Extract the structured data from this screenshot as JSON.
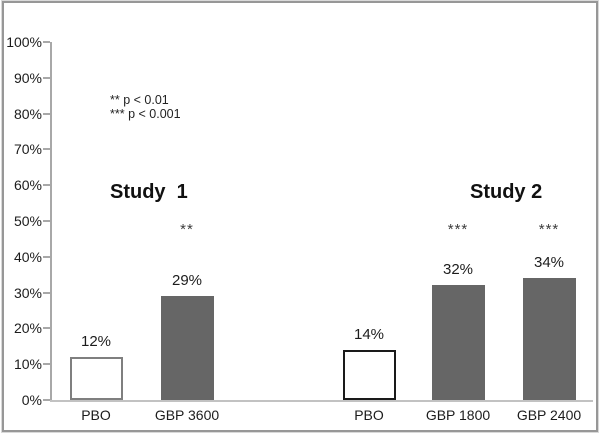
{
  "chart_data": {
    "type": "bar",
    "title": "",
    "xlabel": "",
    "ylabel": "",
    "ylim": [
      0,
      100
    ],
    "y_ticks": [
      "0%",
      "10%",
      "20%",
      "30%",
      "40%",
      "50%",
      "60%",
      "70%",
      "80%",
      "90%",
      "100%"
    ],
    "grid": false,
    "legend_position": "upper-left",
    "legend": [
      "** p < 0.01",
      "*** p < 0.001"
    ],
    "groups": [
      {
        "title": "Study  1",
        "bars": [
          {
            "label": "PBO",
            "value": 12,
            "value_label": "12%",
            "significance": "",
            "fill": "#ffffff",
            "border": "#7f7f7f"
          },
          {
            "label": "GBP 3600",
            "value": 29,
            "value_label": "29%",
            "significance": "**",
            "fill": "#666666",
            "border": "#666666"
          }
        ]
      },
      {
        "title": "Study 2",
        "bars": [
          {
            "label": "PBO",
            "value": 14,
            "value_label": "14%",
            "significance": "",
            "fill": "#ffffff",
            "border": "#1a1a1a"
          },
          {
            "label": "GBP 1800",
            "value": 32,
            "value_label": "32%",
            "significance": "***",
            "fill": "#666666",
            "border": "#666666"
          },
          {
            "label": "GBP 2400",
            "value": 34,
            "value_label": "34%",
            "significance": "***",
            "fill": "#666666",
            "border": "#666666"
          }
        ]
      }
    ]
  },
  "colors": {
    "bar_fill": "#666666",
    "bar_white": "#ffffff",
    "axis": "#a8a8a8",
    "baseline": "#c2c2c2",
    "frame_border": "#979797",
    "text": "#1c1c1c"
  }
}
